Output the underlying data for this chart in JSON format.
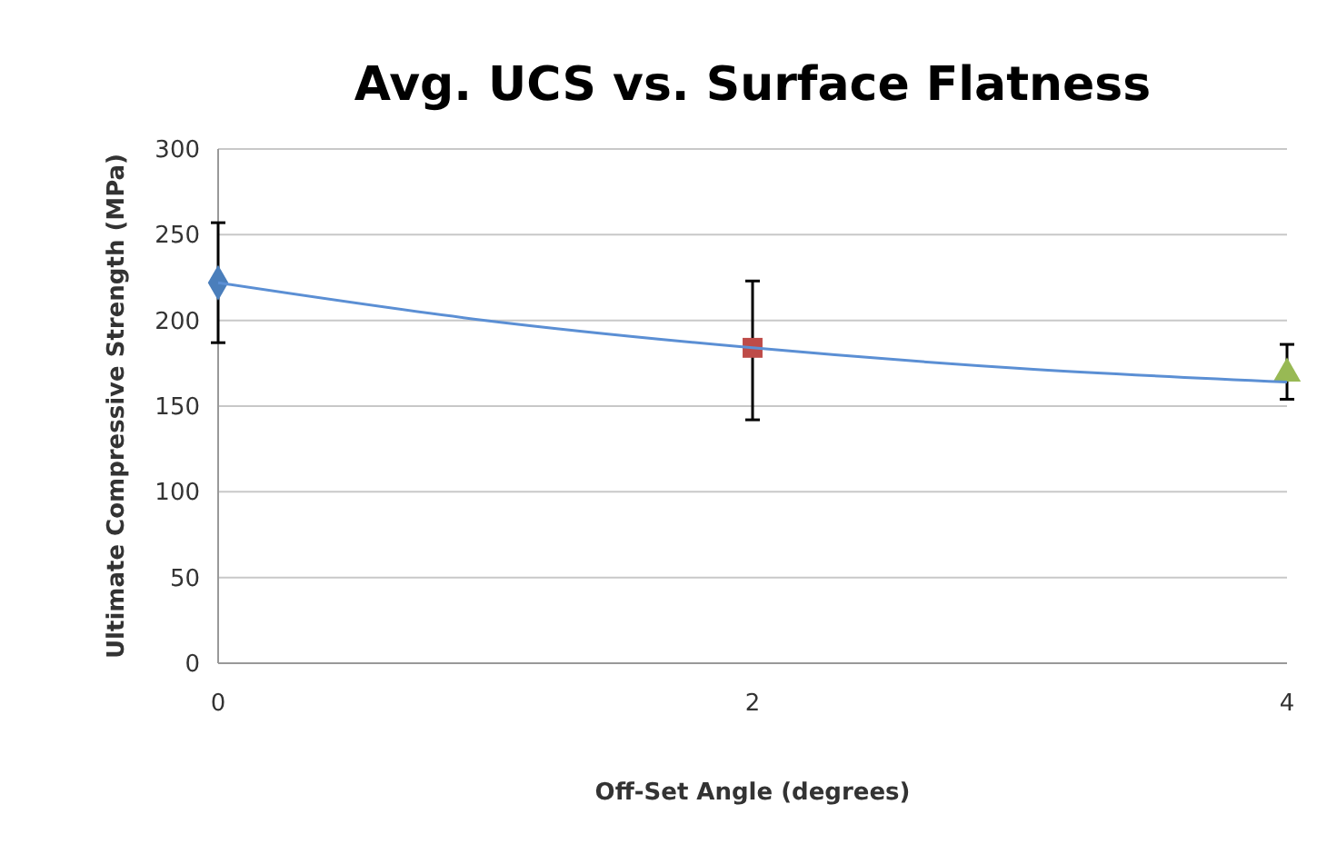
{
  "chart_data": {
    "type": "scatter",
    "title": "Avg. UCS vs. Surface Flatness",
    "xlabel": "Off-Set Angle (degrees)",
    "ylabel": "Ultimate Compressive Strength  (MPa)",
    "xlim": [
      0,
      4
    ],
    "xticks": [
      0,
      2,
      4
    ],
    "ylim": [
      0,
      300
    ],
    "yticks": [
      0,
      50,
      100,
      150,
      200,
      250,
      300
    ],
    "grid": "y",
    "series": [
      {
        "type": "line",
        "color": "#5b8fd4",
        "x": [
          0,
          1,
          2,
          3,
          4
        ],
        "values": [
          222,
          200,
          184,
          172,
          164
        ],
        "marker": "none",
        "line_style": "solid"
      },
      {
        "color": "#4a7ebb",
        "x": [
          0
        ],
        "values": [
          222
        ],
        "errors": [
          [
            187,
            257
          ]
        ],
        "marker": "diamond"
      },
      {
        "color": "#be4b48",
        "x": [
          2
        ],
        "values": [
          184
        ],
        "errors": [
          [
            142,
            223
          ]
        ],
        "marker": "square"
      },
      {
        "color": "#98b954",
        "x": [
          4
        ],
        "values": [
          169
        ],
        "errors": [
          [
            154,
            186
          ]
        ],
        "marker": "triangle"
      }
    ]
  }
}
